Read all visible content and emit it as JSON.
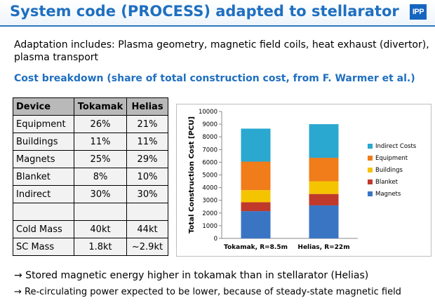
{
  "header": {
    "title": "System code (PROCESS) adapted to stellarator",
    "logo_text": "IPP"
  },
  "intro": "Adaptation includes: Plasma geometry, magnetic field coils, heat exhaust (divertor), plasma transport",
  "subheading": "Cost breakdown (share of total construction cost, from F. Warmer et al.)",
  "table": {
    "headers": [
      "Device",
      "Tokamak",
      "Helias"
    ],
    "rows": [
      [
        "Equipment",
        "26%",
        "21%"
      ],
      [
        "Buildings",
        "11%",
        "11%"
      ],
      [
        "Magnets",
        "25%",
        "29%"
      ],
      [
        "Blanket",
        "8%",
        "10%"
      ],
      [
        "Indirect",
        "30%",
        "30%"
      ],
      [
        "",
        "",
        ""
      ],
      [
        "Cold Mass",
        "40kt",
        "44kt"
      ],
      [
        "SC Mass",
        "1.8kt",
        "~2.9kt"
      ]
    ]
  },
  "chart_data": {
    "type": "bar",
    "stacked": true,
    "categories": [
      "Tokamak, R=8.5m",
      "Helias, R=22m"
    ],
    "ylabel": "Total Construction Cost [PCU]",
    "ylim": [
      0,
      10000
    ],
    "yticks": [
      0,
      1000,
      2000,
      3000,
      4000,
      5000,
      6000,
      7000,
      8000,
      9000,
      10000
    ],
    "legend_position": "right",
    "series": [
      {
        "name": "Magnets",
        "color": "#3a75c4",
        "values": [
          2150,
          2600
        ]
      },
      {
        "name": "Blanket",
        "color": "#c0392b",
        "values": [
          700,
          900
        ]
      },
      {
        "name": "Buildings",
        "color": "#f5c400",
        "values": [
          950,
          1000
        ]
      },
      {
        "name": "Equipment",
        "color": "#f07c1a",
        "values": [
          2250,
          1850
        ]
      },
      {
        "name": "Indirect Costs",
        "color": "#2aa8d0",
        "values": [
          2600,
          2650
        ]
      }
    ],
    "legend_order": [
      "Indirect Costs",
      "Equipment",
      "Buildings",
      "Blanket",
      "Magnets"
    ]
  },
  "bullets": [
    "→ Stored magnetic energy higher in tokamak than in stellarator (Helias)",
    "→ Re-circulating power expected to be lower, because of steady-state magnetic field"
  ]
}
